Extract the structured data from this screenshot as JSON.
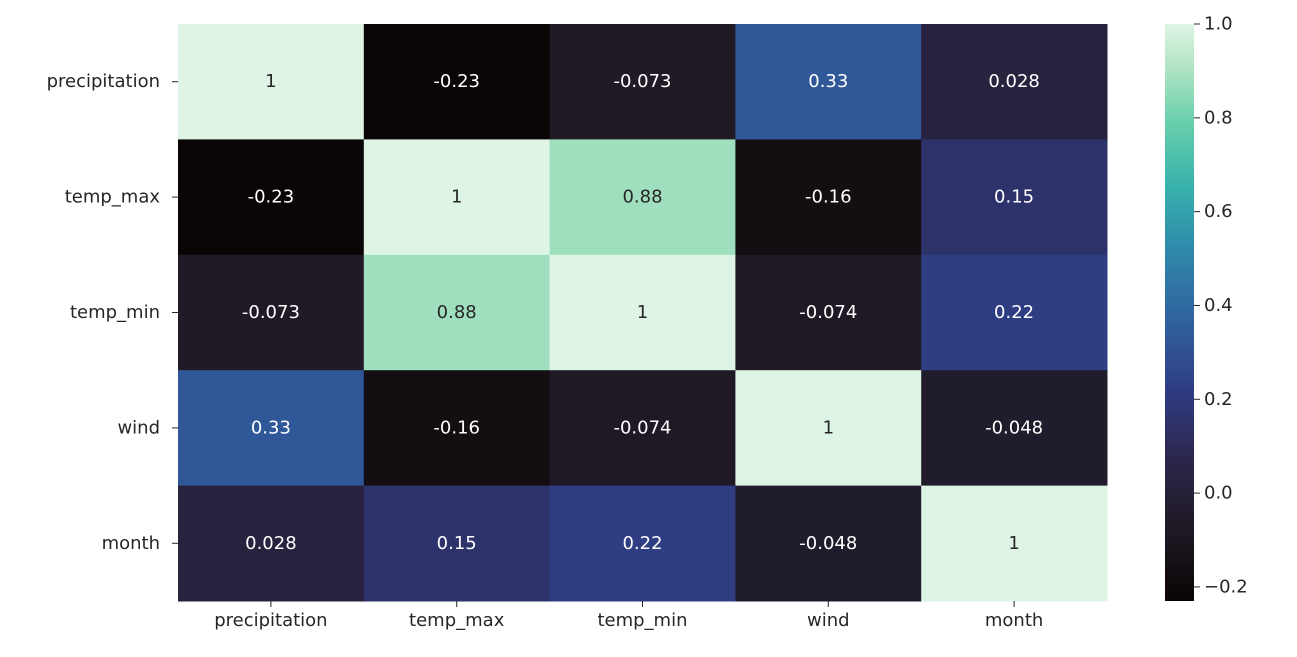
{
  "chart_data": {
    "type": "heatmap",
    "title": "",
    "xlabel": "",
    "ylabel": "",
    "x_labels": [
      "precipitation",
      "temp_max",
      "temp_min",
      "wind",
      "month"
    ],
    "y_labels": [
      "precipitation",
      "temp_max",
      "temp_min",
      "wind",
      "month"
    ],
    "values": [
      [
        1,
        -0.23,
        -0.073,
        0.33,
        0.028
      ],
      [
        -0.23,
        1,
        0.88,
        -0.16,
        0.15
      ],
      [
        -0.073,
        0.88,
        1,
        -0.074,
        0.22
      ],
      [
        0.33,
        -0.16,
        -0.074,
        1,
        -0.048
      ],
      [
        0.028,
        0.15,
        0.22,
        -0.048,
        1
      ]
    ],
    "annotations": [
      [
        "1",
        "-0.23",
        "-0.073",
        "0.33",
        "0.028"
      ],
      [
        "-0.23",
        "1",
        "0.88",
        "-0.16",
        "0.15"
      ],
      [
        "-0.073",
        "0.88",
        "1",
        "-0.074",
        "0.22"
      ],
      [
        "0.33",
        "-0.16",
        "-0.074",
        "1",
        "-0.048"
      ],
      [
        "0.028",
        "0.15",
        "0.22",
        "-0.048",
        "1"
      ]
    ],
    "vmin": -0.23,
    "vmax": 1,
    "colormap": "mako",
    "colorbar": {
      "ticks": [
        -0.2,
        0.0,
        0.2,
        0.4,
        0.6,
        0.8,
        1.0
      ],
      "tick_labels": [
        "−0.2",
        "0.0",
        "0.2",
        "0.4",
        "0.6",
        "0.8",
        "1.0"
      ],
      "placement": "right"
    },
    "grid": false
  }
}
